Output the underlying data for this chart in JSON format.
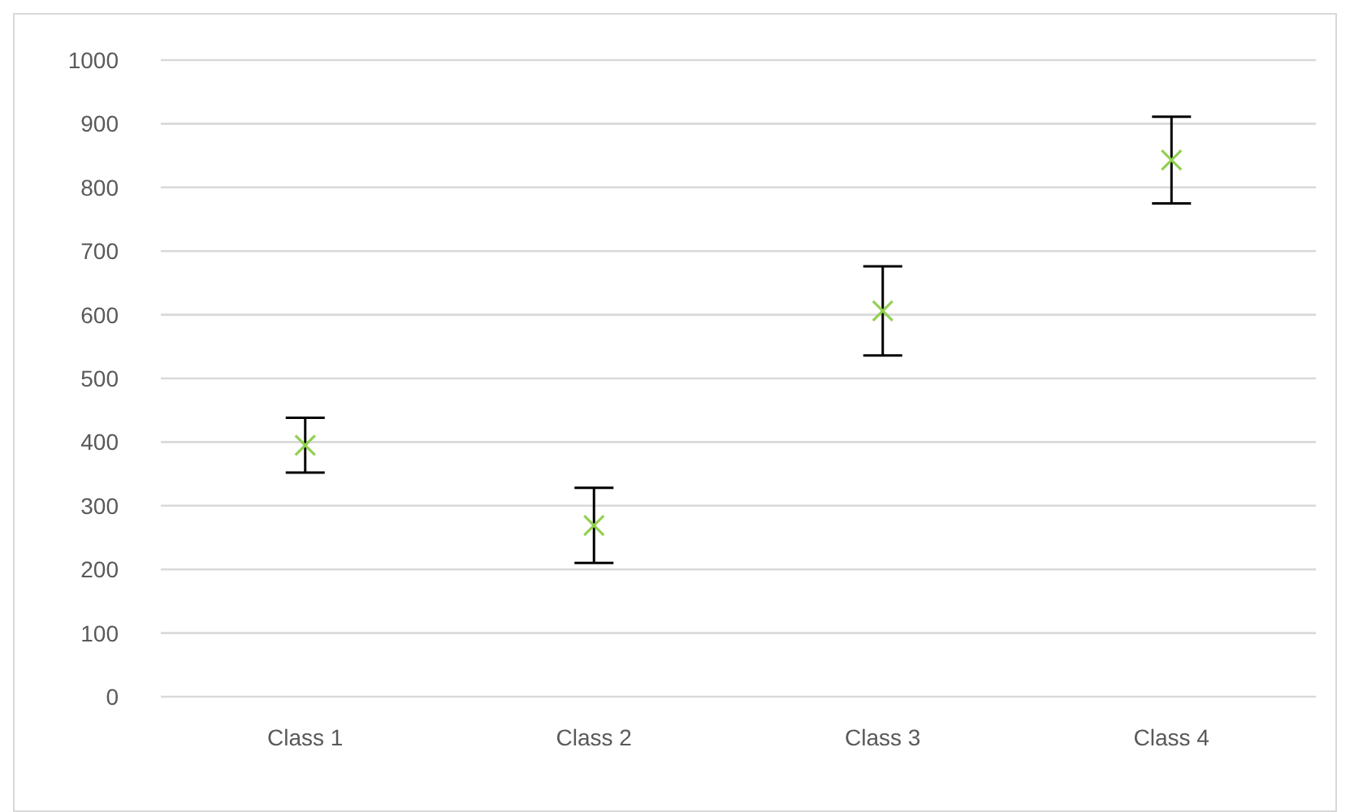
{
  "chart_data": {
    "type": "scatter",
    "categories": [
      "Class 1",
      "Class 2",
      "Class 3",
      "Class 4"
    ],
    "series": [
      {
        "color": "#92d050",
        "values": [
          395,
          269,
          606,
          843
        ],
        "errors": [
          43,
          59,
          70,
          68
        ]
      }
    ],
    "ylim": [
      0,
      1000
    ],
    "yticks": [
      0,
      100,
      200,
      300,
      400,
      500,
      600,
      700,
      800,
      900,
      1000
    ],
    "grid": "y",
    "marker": "cross"
  }
}
